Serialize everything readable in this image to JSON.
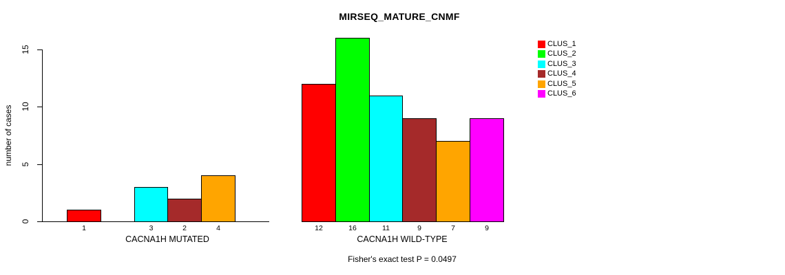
{
  "chart_data": {
    "type": "bar",
    "title": "MIRSEQ_MATURE_CNMF",
    "ylabel": "number of cases",
    "xlabel": "",
    "ylim": [
      0,
      16
    ],
    "yticks": [
      0,
      5,
      10,
      15
    ],
    "grid": false,
    "legend_position": "right",
    "categories": [
      "CACNA1H MUTATED",
      "CACNA1H WILD-TYPE"
    ],
    "series": [
      {
        "name": "CLUS_1",
        "color": "#FF0000",
        "values": [
          1,
          12
        ]
      },
      {
        "name": "CLUS_2",
        "color": "#00FF00",
        "values": [
          0,
          16
        ]
      },
      {
        "name": "CLUS_3",
        "color": "#00FFFF",
        "values": [
          3,
          11
        ]
      },
      {
        "name": "CLUS_4",
        "color": "#A52A2A",
        "values": [
          2,
          9
        ]
      },
      {
        "name": "CLUS_5",
        "color": "#FFA500",
        "values": [
          4,
          7
        ]
      },
      {
        "name": "CLUS_6",
        "color": "#FF00FF",
        "values": [
          0,
          9
        ]
      }
    ],
    "bar_value_labels": {
      "CACNA1H MUTATED": [
        1,
        null,
        3,
        2,
        4,
        null
      ],
      "CACNA1H WILD-TYPE": [
        12,
        16,
        11,
        9,
        7,
        9
      ],
      "note": "zero-value bars are not drawn and have no label"
    },
    "annotation": "Fisher's exact test P = 0.0497"
  }
}
